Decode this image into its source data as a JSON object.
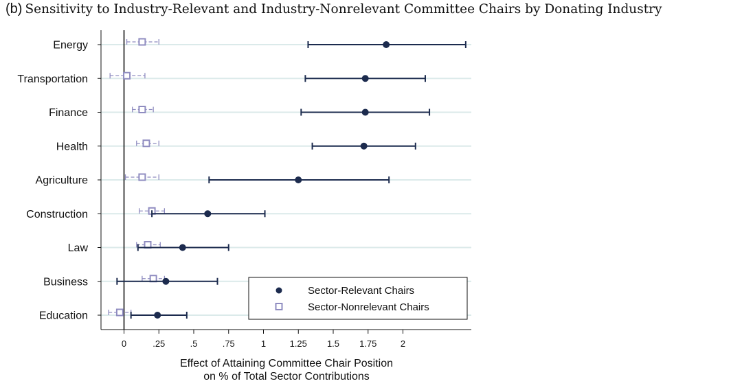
{
  "panel_label": "(b)",
  "chart_data": {
    "type": "dot-whisker",
    "title": "Sensitivity to Industry-Relevant and Industry-Nonrelevant Committee Chairs by Donating Industry",
    "xlabel": [
      "Effect of Attaining Committee Chair Position",
      "on % of Total Sector Contributions"
    ],
    "ylabel": "",
    "xlim": [
      -0.15,
      2.5
    ],
    "x_ticks": [
      {
        "value": 0,
        "label": "0"
      },
      {
        "value": 0.25,
        "label": ".25"
      },
      {
        "value": 0.5,
        "label": ".5"
      },
      {
        "value": 0.75,
        "label": ".75"
      },
      {
        "value": 1,
        "label": "1"
      },
      {
        "value": 1.25,
        "label": "1.25"
      },
      {
        "value": 1.5,
        "label": "1.5"
      },
      {
        "value": 1.75,
        "label": "1.75"
      },
      {
        "value": 2,
        "label": "2"
      }
    ],
    "categories": [
      "Energy",
      "Transportation",
      "Finance",
      "Health",
      "Agriculture",
      "Construction",
      "Law",
      "Business",
      "Education"
    ],
    "grid": true,
    "reference_line": 0,
    "legend_position": "bottom-right",
    "colors": {
      "relevant": "#1c2b4e",
      "nonrelevant": "#8f8cc0",
      "grid": "#dbeaea"
    },
    "series": [
      {
        "name": "Sector-Relevant Chairs",
        "marker": "filled-circle",
        "estimates": [
          1.88,
          1.73,
          1.73,
          1.72,
          1.25,
          0.6,
          0.42,
          0.3,
          0.24
        ],
        "ci_low": [
          1.32,
          1.3,
          1.27,
          1.35,
          0.61,
          0.2,
          0.1,
          -0.05,
          0.05
        ],
        "ci_high": [
          2.45,
          2.16,
          2.19,
          2.09,
          1.9,
          1.01,
          0.75,
          0.67,
          0.45
        ]
      },
      {
        "name": "Sector-Nonrelevant Chairs",
        "marker": "hollow-square",
        "estimates": [
          0.13,
          0.02,
          0.13,
          0.16,
          0.13,
          0.2,
          0.17,
          0.21,
          -0.03
        ],
        "ci_low": [
          0.02,
          -0.1,
          0.06,
          0.09,
          0.01,
          0.11,
          0.09,
          0.13,
          -0.11
        ],
        "ci_high": [
          0.25,
          0.15,
          0.21,
          0.25,
          0.25,
          0.29,
          0.26,
          0.29,
          0.05
        ]
      }
    ]
  }
}
